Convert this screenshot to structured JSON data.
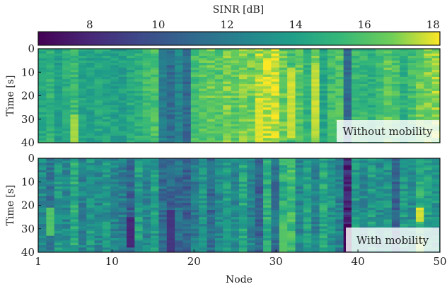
{
  "chart_data": {
    "type": "heatmap",
    "colormap": "viridis",
    "colorbar": {
      "title": "SINR [dB]",
      "range": [
        6.5,
        18.2
      ],
      "ticks": [
        8,
        10,
        12,
        14,
        16,
        18
      ],
      "tick_labels": [
        "8",
        "10",
        "12",
        "14",
        "16",
        "18"
      ]
    },
    "x": {
      "label": "Node",
      "range": [
        1,
        50
      ],
      "ticks": [
        1,
        10,
        20,
        30,
        40,
        50
      ],
      "tick_labels": [
        "1",
        "10",
        "20",
        "30",
        "40",
        "50"
      ]
    },
    "time_ticks": [
      0,
      10,
      20,
      30,
      40
    ],
    "panels": [
      {
        "tag": "Without mobility",
        "ylabel": "Time [s]",
        "ylim": [
          0,
          40
        ],
        "y_tick_labels": [
          "0",
          "10",
          "20",
          "30",
          "40"
        ],
        "time_rows": 40,
        "node_mean_sinr_db": [
          14.5,
          15.0,
          13.8,
          14.8,
          15.4,
          14.2,
          14.0,
          14.4,
          14.3,
          14.0,
          13.9,
          14.5,
          14.8,
          15.5,
          15.8,
          12.2,
          11.2,
          12.4,
          11.0,
          15.6,
          16.2,
          16.4,
          16.0,
          16.6,
          16.2,
          16.8,
          16.5,
          17.2,
          17.6,
          17.8,
          16.4,
          15.5,
          16.2,
          15.0,
          16.8,
          14.2,
          15.5,
          16.0,
          11.0,
          15.4,
          15.2,
          14.8,
          15.4,
          16.2,
          15.8,
          14.8,
          15.6,
          16.4,
          16.8,
          17.0
        ],
        "highlights": [
          {
            "node": 32,
            "time_range": [
              8,
              38
            ],
            "sinr_db": 17.7
          },
          {
            "node": 35,
            "time_range": [
              8,
              35
            ],
            "sinr_db": 17.6
          },
          {
            "node": 5,
            "time_range": [
              28,
              40
            ],
            "sinr_db": 17.2
          },
          {
            "node": 28,
            "time_range": [
              22,
              40
            ],
            "sinr_db": 17.8
          }
        ]
      },
      {
        "tag": "With mobility",
        "ylabel": "Time [s]",
        "ylim": [
          0,
          40
        ],
        "y_tick_labels": [
          "0",
          "10",
          "20",
          "30",
          "40"
        ],
        "time_rows": 40,
        "node_mean_sinr_db": [
          12.8,
          11.8,
          13.5,
          12.6,
          14.5,
          12.3,
          13.6,
          12.7,
          13.4,
          12.5,
          12.0,
          10.6,
          13.8,
          12.5,
          13.8,
          11.2,
          10.8,
          11.3,
          10.6,
          12.0,
          13.2,
          11.0,
          12.6,
          13.6,
          12.6,
          14.3,
          12.4,
          10.6,
          14.6,
          11.3,
          14.8,
          15.4,
          12.5,
          14.0,
          12.3,
          14.4,
          13.3,
          12.1,
          8.0,
          13.5,
          12.6,
          13.8,
          12.8,
          13.4,
          10.9,
          13.5,
          12.9,
          14.8,
          13.9,
          13.4
        ],
        "highlights": [
          {
            "node": 2,
            "time_range": [
              21,
              33
            ],
            "sinr_db": 16.0
          },
          {
            "node": 31,
            "time_range": [
              28,
              40
            ],
            "sinr_db": 16.2
          },
          {
            "node": 48,
            "time_range": [
              21,
              27
            ],
            "sinr_db": 17.8
          },
          {
            "node": 48,
            "time_range": [
              33,
              40
            ],
            "sinr_db": 17.2
          },
          {
            "node": 39,
            "time_range": [
              28,
              40
            ],
            "sinr_db": 6.6
          },
          {
            "node": 12,
            "time_range": [
              25,
              38
            ],
            "sinr_db": 8.0
          },
          {
            "node": 17,
            "time_range": [
              22,
              40
            ],
            "sinr_db": 8.6
          }
        ]
      }
    ]
  }
}
